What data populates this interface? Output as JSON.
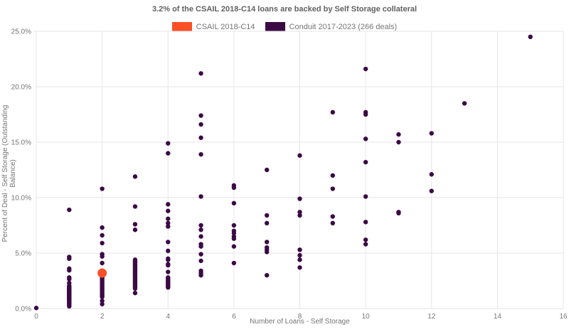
{
  "title": "3.2% of the CSAIL 2018-C14 loans are backed by Self Storage collateral",
  "legend": [
    {
      "label": "CSAIL 2018-C14",
      "color": "#fa4f27"
    },
    {
      "label": "Conduit 2017-2023 (266 deals)",
      "color": "#3b0a45"
    }
  ],
  "colors": {
    "grid": "#e6e6e6",
    "tick_text": "#757575",
    "title_text": "#616161"
  },
  "chart_data": {
    "type": "scatter",
    "title": "3.2% of the CSAIL 2018-C14 loans are backed by Self Storage collateral",
    "xlabel": "Number of Loans - Self Storage",
    "ylabel": "Percent of Deal - Self Storage (Outstanding Balance)",
    "xlim": [
      0,
      16
    ],
    "ylim": [
      0,
      25
    ],
    "x_ticks": [
      0,
      2,
      4,
      6,
      8,
      10,
      12,
      14,
      16
    ],
    "y_tick_values": [
      0,
      5,
      10,
      15,
      20,
      25
    ],
    "y_tick_labels": [
      "0.0%",
      "5.0%",
      "10.0%",
      "15.0%",
      "20.0%",
      "25.0%"
    ],
    "grid": true,
    "legend_position": "top",
    "series": [
      {
        "name": "Conduit 2017-2023 (266 deals)",
        "color": "#3b0a45",
        "marker_radius": 3.2,
        "points": [
          [
            0,
            0.05
          ],
          [
            1,
            8.9
          ],
          [
            1,
            4.65
          ],
          [
            1,
            4.5
          ],
          [
            1,
            3.6
          ],
          [
            1,
            3.45
          ],
          [
            1,
            2.8
          ],
          [
            1,
            2.65
          ],
          [
            1,
            2.3
          ],
          [
            1,
            2.05
          ],
          [
            1,
            1.95
          ],
          [
            1,
            1.9
          ],
          [
            1,
            1.85
          ],
          [
            1,
            1.8
          ],
          [
            1,
            1.75
          ],
          [
            1,
            1.7
          ],
          [
            1,
            1.65
          ],
          [
            1,
            1.6
          ],
          [
            1,
            1.55
          ],
          [
            1,
            1.5
          ],
          [
            1,
            1.45
          ],
          [
            1,
            1.4
          ],
          [
            1,
            1.35
          ],
          [
            1,
            1.3
          ],
          [
            1,
            1.25
          ],
          [
            1,
            1.2
          ],
          [
            1,
            1.15
          ],
          [
            1,
            1.1
          ],
          [
            1,
            1.05
          ],
          [
            1,
            1.0
          ],
          [
            1,
            0.95
          ],
          [
            1,
            0.9
          ],
          [
            1,
            0.85
          ],
          [
            1,
            0.8
          ],
          [
            1,
            0.75
          ],
          [
            1,
            0.7
          ],
          [
            1,
            0.6
          ],
          [
            1,
            0.5
          ],
          [
            1,
            0.45
          ],
          [
            1,
            0.4
          ],
          [
            1,
            0.3
          ],
          [
            1,
            0.2
          ],
          [
            2,
            10.8
          ],
          [
            2,
            7.3
          ],
          [
            2,
            6.6
          ],
          [
            2,
            5.9
          ],
          [
            2,
            4.9
          ],
          [
            2,
            4.7
          ],
          [
            2,
            4.1
          ],
          [
            2,
            3.4
          ],
          [
            2,
            3.2
          ],
          [
            2,
            3.05
          ],
          [
            2,
            2.95
          ],
          [
            2,
            2.85
          ],
          [
            2,
            2.75
          ],
          [
            2,
            2.65
          ],
          [
            2,
            2.55
          ],
          [
            2,
            2.45
          ],
          [
            2,
            2.35
          ],
          [
            2,
            2.25
          ],
          [
            2,
            2.15
          ],
          [
            2,
            2.05
          ],
          [
            2,
            1.95
          ],
          [
            2,
            1.85
          ],
          [
            2,
            1.75
          ],
          [
            2,
            1.65
          ],
          [
            2,
            1.55
          ],
          [
            2,
            1.45
          ],
          [
            2,
            1.35
          ],
          [
            2,
            1.25
          ],
          [
            2,
            1.15
          ],
          [
            2,
            1.05
          ],
          [
            2,
            0.7
          ],
          [
            2,
            0.4
          ],
          [
            3,
            11.9
          ],
          [
            3,
            9.2
          ],
          [
            3,
            7.6
          ],
          [
            3,
            7.1
          ],
          [
            3,
            4.4
          ],
          [
            3,
            4.3
          ],
          [
            3,
            4.2
          ],
          [
            3,
            4.1
          ],
          [
            3,
            4.0
          ],
          [
            3,
            3.9
          ],
          [
            3,
            3.8
          ],
          [
            3,
            3.7
          ],
          [
            3,
            3.6
          ],
          [
            3,
            3.5
          ],
          [
            3,
            3.4
          ],
          [
            3,
            3.3
          ],
          [
            3,
            3.2
          ],
          [
            3,
            3.1
          ],
          [
            3,
            3.0
          ],
          [
            3,
            2.9
          ],
          [
            3,
            2.8
          ],
          [
            3,
            2.7
          ],
          [
            3,
            2.6
          ],
          [
            3,
            2.5
          ],
          [
            3,
            2.4
          ],
          [
            3,
            2.3
          ],
          [
            3,
            2.2
          ],
          [
            3,
            2.1
          ],
          [
            3,
            2.0
          ],
          [
            3,
            1.9
          ],
          [
            3,
            1.8
          ],
          [
            3,
            1.4
          ],
          [
            4,
            14.9
          ],
          [
            4,
            14.0
          ],
          [
            4,
            9.4
          ],
          [
            4,
            8.8
          ],
          [
            4,
            8.1
          ],
          [
            4,
            7.7
          ],
          [
            4,
            7.4
          ],
          [
            4,
            6.0
          ],
          [
            4,
            5.2
          ],
          [
            4,
            4.5
          ],
          [
            4,
            4.4
          ],
          [
            4,
            4.0
          ],
          [
            4,
            3.9
          ],
          [
            4,
            3.3
          ],
          [
            4,
            2.8
          ],
          [
            4,
            2.7
          ],
          [
            4,
            2.6
          ],
          [
            4,
            2.5
          ],
          [
            4,
            2.4
          ],
          [
            4,
            2.3
          ],
          [
            4,
            2.2
          ],
          [
            4,
            2.1
          ],
          [
            4,
            2.0
          ],
          [
            4,
            1.9
          ],
          [
            5,
            21.2
          ],
          [
            5,
            17.4
          ],
          [
            5,
            16.6
          ],
          [
            5,
            15.4
          ],
          [
            5,
            13.9
          ],
          [
            5,
            10.1
          ],
          [
            5,
            7.5
          ],
          [
            5,
            7.1
          ],
          [
            5,
            6.5
          ],
          [
            5,
            5.8
          ],
          [
            5,
            5.6
          ],
          [
            5,
            4.9
          ],
          [
            5,
            4.3
          ],
          [
            5,
            3.4
          ],
          [
            5,
            3.2
          ],
          [
            5,
            3.0
          ],
          [
            6,
            11.1
          ],
          [
            6,
            10.9
          ],
          [
            6,
            9.5
          ],
          [
            6,
            7.5
          ],
          [
            6,
            7.0
          ],
          [
            6,
            6.8
          ],
          [
            6,
            6.5
          ],
          [
            6,
            6.3
          ],
          [
            6,
            5.6
          ],
          [
            6,
            4.1
          ],
          [
            7,
            12.5
          ],
          [
            7,
            8.4
          ],
          [
            7,
            7.7
          ],
          [
            7,
            6.0
          ],
          [
            7,
            5.5
          ],
          [
            7,
            5.3
          ],
          [
            7,
            5.1
          ],
          [
            7,
            3.0
          ],
          [
            8,
            13.8
          ],
          [
            8,
            9.9
          ],
          [
            8,
            8.7
          ],
          [
            8,
            8.4
          ],
          [
            8,
            5.3
          ],
          [
            8,
            4.8
          ],
          [
            8,
            4.4
          ],
          [
            8,
            3.7
          ],
          [
            9,
            17.7
          ],
          [
            9,
            12.0
          ],
          [
            9,
            10.8
          ],
          [
            9,
            8.3
          ],
          [
            9,
            7.7
          ],
          [
            10,
            21.6
          ],
          [
            10,
            17.7
          ],
          [
            10,
            17.5
          ],
          [
            10,
            15.3
          ],
          [
            10,
            13.2
          ],
          [
            10,
            10.1
          ],
          [
            10,
            7.8
          ],
          [
            10,
            6.2
          ],
          [
            10,
            5.8
          ],
          [
            11,
            15.7
          ],
          [
            11,
            15.0
          ],
          [
            11,
            8.7
          ],
          [
            11,
            8.6
          ],
          [
            12,
            15.8
          ],
          [
            12,
            12.1
          ],
          [
            12,
            10.6
          ],
          [
            13,
            18.5
          ],
          [
            15,
            24.5
          ]
        ]
      },
      {
        "name": "CSAIL 2018-C14",
        "color": "#fa4f27",
        "marker_radius": 6.5,
        "points": [
          [
            2,
            3.2
          ]
        ]
      }
    ]
  }
}
